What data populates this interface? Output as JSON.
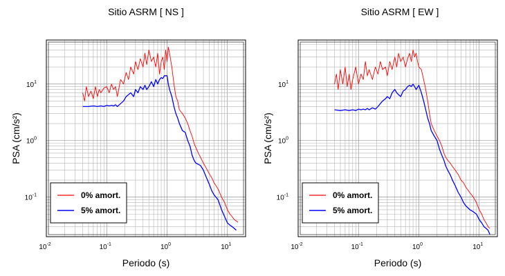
{
  "chart_data": [
    {
      "type": "line",
      "title": "Sitio ASRM [ NS ]",
      "xlabel": "Periodo (s)",
      "ylabel": "PSA (cm/s²)",
      "xscale": "log",
      "yscale": "log",
      "xlim": [
        0.01,
        20
      ],
      "ylim": [
        0.02,
        60
      ],
      "grid": true,
      "legend_position": "bottom-left",
      "x_ticks": [
        {
          "base": "10",
          "exp": "-2",
          "value": 0.01
        },
        {
          "base": "10",
          "exp": "-1",
          "value": 0.1
        },
        {
          "base": "10",
          "exp": "0",
          "value": 1
        },
        {
          "base": "10",
          "exp": "1",
          "value": 10
        }
      ],
      "y_ticks": [
        {
          "base": "10",
          "exp": "-1",
          "value": 0.1
        },
        {
          "base": "10",
          "exp": "0",
          "value": 1
        },
        {
          "base": "10",
          "exp": "1",
          "value": 10
        }
      ],
      "series": [
        {
          "name": "0% amort.",
          "color": "#ff0000",
          "x": [
            0.04,
            0.043,
            0.046,
            0.05,
            0.055,
            0.06,
            0.065,
            0.07,
            0.075,
            0.08,
            0.09,
            0.1,
            0.11,
            0.12,
            0.13,
            0.14,
            0.15,
            0.17,
            0.19,
            0.21,
            0.23,
            0.25,
            0.28,
            0.3,
            0.33,
            0.36,
            0.4,
            0.43,
            0.46,
            0.5,
            0.55,
            0.6,
            0.65,
            0.7,
            0.75,
            0.8,
            0.85,
            0.9,
            0.95,
            1.0,
            1.05,
            1.1,
            1.2,
            1.3,
            1.4,
            1.5,
            1.6,
            1.8,
            2.0,
            2.2,
            2.4,
            2.6,
            2.8,
            3.0,
            3.3,
            3.6,
            4.0,
            4.5,
            5.0,
            5.5,
            6.0,
            7.0,
            8.0,
            9.0,
            10.0,
            11.0,
            12.0,
            13.0,
            14.0,
            15.0
          ],
          "y": [
            7.0,
            5.0,
            9.0,
            6.0,
            7.5,
            5.5,
            9.0,
            6.0,
            8.0,
            7.0,
            8.5,
            9.0,
            7.0,
            10.0,
            8.0,
            9.0,
            6.0,
            12.0,
            10.0,
            16.0,
            12.0,
            20.0,
            15.0,
            25.0,
            18.0,
            28.0,
            20.0,
            35.0,
            22.0,
            40.0,
            25.0,
            30.0,
            20.0,
            35.0,
            15.0,
            25.0,
            30.0,
            18.0,
            40.0,
            25.0,
            45.0,
            35.0,
            20.0,
            10.0,
            6.0,
            5.0,
            3.5,
            3.0,
            2.5,
            2.0,
            1.5,
            1.2,
            0.9,
            0.75,
            0.6,
            0.5,
            0.4,
            0.32,
            0.26,
            0.22,
            0.18,
            0.14,
            0.1,
            0.08,
            0.06,
            0.05,
            0.045,
            0.04,
            0.038,
            0.036
          ]
        },
        {
          "name": "5% amort.",
          "color": "#0000ff",
          "x": [
            0.04,
            0.05,
            0.06,
            0.07,
            0.08,
            0.09,
            0.1,
            0.11,
            0.12,
            0.13,
            0.14,
            0.15,
            0.17,
            0.19,
            0.21,
            0.23,
            0.25,
            0.28,
            0.3,
            0.33,
            0.36,
            0.4,
            0.43,
            0.46,
            0.5,
            0.55,
            0.6,
            0.65,
            0.7,
            0.75,
            0.8,
            0.85,
            0.9,
            1.0,
            1.05,
            1.1,
            1.2,
            1.3,
            1.4,
            1.5,
            1.6,
            1.8,
            2.0,
            2.2,
            2.4,
            2.6,
            2.8,
            3.0,
            3.3,
            3.6,
            4.0,
            4.5,
            5.0,
            5.5,
            6.0,
            7.0,
            8.0,
            9.0,
            10.0,
            11.0,
            12.0,
            13.0,
            14.0
          ],
          "y": [
            4.0,
            4.0,
            4.1,
            4.0,
            4.1,
            4.0,
            4.2,
            4.1,
            4.2,
            4.1,
            4.3,
            4.0,
            4.5,
            5.0,
            6.0,
            6.5,
            7.0,
            6.0,
            8.0,
            7.0,
            9.0,
            8.0,
            9.5,
            8.0,
            9.0,
            11.0,
            9.0,
            12.0,
            10.0,
            12.0,
            13.0,
            12.5,
            14.0,
            14.0,
            10.0,
            8.0,
            6.0,
            4.0,
            3.0,
            2.5,
            2.0,
            1.5,
            1.4,
            1.0,
            0.8,
            0.55,
            0.45,
            0.4,
            0.38,
            0.36,
            0.3,
            0.22,
            0.17,
            0.13,
            0.11,
            0.09,
            0.06,
            0.045,
            0.035,
            0.032,
            0.03,
            0.028,
            0.026
          ]
        }
      ]
    },
    {
      "type": "line",
      "title": "Sitio ASRM [ EW ]",
      "xlabel": "Periodo (s)",
      "ylabel": "PSA (cm/s²)",
      "xscale": "log",
      "yscale": "log",
      "xlim": [
        0.01,
        20
      ],
      "ylim": [
        0.02,
        60
      ],
      "grid": true,
      "legend_position": "bottom-left",
      "x_ticks": [
        {
          "base": "10",
          "exp": "-2",
          "value": 0.01
        },
        {
          "base": "10",
          "exp": "-1",
          "value": 0.1
        },
        {
          "base": "10",
          "exp": "0",
          "value": 1
        },
        {
          "base": "10",
          "exp": "1",
          "value": 10
        }
      ],
      "y_ticks": [
        {
          "base": "10",
          "exp": "-1",
          "value": 0.1
        },
        {
          "base": "10",
          "exp": "0",
          "value": 1
        },
        {
          "base": "10",
          "exp": "1",
          "value": 10
        }
      ],
      "series": [
        {
          "name": "0% amort.",
          "color": "#ff0000",
          "x": [
            0.04,
            0.043,
            0.046,
            0.05,
            0.055,
            0.06,
            0.065,
            0.07,
            0.075,
            0.08,
            0.09,
            0.1,
            0.11,
            0.12,
            0.13,
            0.14,
            0.15,
            0.17,
            0.19,
            0.21,
            0.23,
            0.25,
            0.28,
            0.3,
            0.33,
            0.36,
            0.4,
            0.43,
            0.46,
            0.5,
            0.55,
            0.6,
            0.65,
            0.7,
            0.75,
            0.8,
            0.85,
            0.9,
            0.95,
            1.0,
            1.1,
            1.2,
            1.3,
            1.4,
            1.5,
            1.6,
            1.8,
            2.0,
            2.2,
            2.4,
            2.6,
            2.8,
            3.0,
            3.3,
            3.6,
            4.0,
            4.5,
            5.0,
            5.5,
            6.0,
            7.0,
            8.0,
            9.0,
            10.0,
            11.0,
            12.0,
            13.0,
            14.0,
            15.0
          ],
          "y": [
            10.0,
            15.0,
            8.0,
            18.0,
            10.0,
            20.0,
            9.0,
            15.0,
            8.0,
            12.0,
            20.0,
            10.0,
            15.0,
            12.0,
            25.0,
            14.0,
            18.0,
            12.0,
            20.0,
            15.0,
            25.0,
            18.0,
            20.0,
            14.0,
            25.0,
            18.0,
            30.0,
            20.0,
            35.0,
            25.0,
            30.0,
            20.0,
            28.0,
            35.0,
            25.0,
            40.0,
            30.0,
            35.0,
            25.0,
            20.0,
            18.0,
            12.0,
            8.0,
            5.0,
            3.0,
            2.0,
            1.5,
            1.2,
            1.0,
            0.8,
            0.6,
            0.5,
            0.45,
            0.4,
            0.35,
            0.3,
            0.25,
            0.2,
            0.18,
            0.15,
            0.12,
            0.1,
            0.08,
            0.06,
            0.05,
            0.04,
            0.035,
            0.03,
            0.028
          ]
        },
        {
          "name": "5% amort.",
          "color": "#0000ff",
          "x": [
            0.04,
            0.05,
            0.06,
            0.07,
            0.08,
            0.09,
            0.1,
            0.11,
            0.12,
            0.13,
            0.14,
            0.15,
            0.17,
            0.19,
            0.21,
            0.23,
            0.25,
            0.28,
            0.3,
            0.33,
            0.36,
            0.4,
            0.43,
            0.46,
            0.5,
            0.55,
            0.6,
            0.65,
            0.7,
            0.75,
            0.8,
            0.85,
            0.9,
            1.0,
            1.1,
            1.2,
            1.3,
            1.4,
            1.5,
            1.6,
            1.8,
            2.0,
            2.2,
            2.4,
            2.6,
            2.8,
            3.0,
            3.3,
            3.6,
            4.0,
            4.5,
            5.0,
            5.5,
            6.0,
            7.0,
            8.0,
            9.0,
            10.0,
            11.0,
            12.0,
            13.0,
            14.0,
            15.0
          ],
          "y": [
            3.5,
            3.4,
            3.5,
            3.4,
            3.5,
            3.4,
            3.6,
            3.5,
            3.6,
            3.5,
            3.7,
            3.5,
            3.8,
            3.6,
            4.0,
            4.5,
            5.0,
            5.5,
            6.0,
            5.5,
            7.0,
            8.0,
            7.0,
            6.5,
            6.0,
            7.5,
            8.0,
            9.0,
            9.5,
            9.0,
            10.0,
            9.0,
            8.0,
            9.5,
            7.0,
            5.0,
            3.5,
            2.5,
            2.0,
            1.5,
            1.2,
            1.0,
            0.7,
            0.55,
            0.45,
            0.35,
            0.3,
            0.25,
            0.2,
            0.16,
            0.12,
            0.1,
            0.08,
            0.07,
            0.06,
            0.055,
            0.05,
            0.04,
            0.035,
            0.03,
            0.028,
            0.026,
            0.022
          ]
        }
      ]
    }
  ]
}
